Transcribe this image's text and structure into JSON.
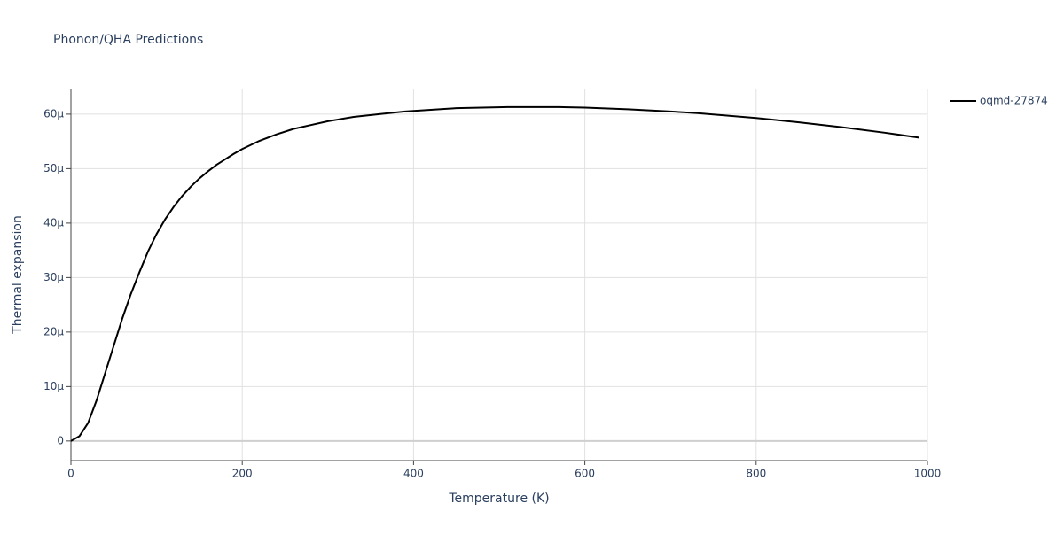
{
  "chart_data": {
    "type": "line",
    "title": "Phonon/QHA Predictions",
    "x_label": "Temperature (K)",
    "y_label": "Thermal expansion",
    "xlim": [
      0,
      1000
    ],
    "xticks": [
      0,
      200,
      400,
      600,
      800,
      1000
    ],
    "ylim": [
      -3.6e-06,
      6.47e-05
    ],
    "yticks": [
      0,
      {
        "value": 1e-05,
        "label": "10µ"
      },
      {
        "value": 2e-05,
        "label": "20µ"
      },
      {
        "value": 3e-05,
        "label": "30µ"
      },
      {
        "value": 4e-05,
        "label": "40µ"
      },
      {
        "value": 5e-05,
        "label": "50µ"
      },
      {
        "value": 6e-05,
        "label": "60µ"
      }
    ],
    "grid": true,
    "legend": "top-right",
    "x": [
      0,
      10,
      20,
      30,
      40,
      50,
      60,
      70,
      80,
      90,
      100,
      110,
      120,
      130,
      140,
      150,
      160,
      170,
      180,
      190,
      200,
      220,
      240,
      260,
      280,
      300,
      330,
      360,
      390,
      420,
      450,
      510,
      570,
      600,
      650,
      700,
      730,
      800,
      850,
      900,
      950,
      990
    ],
    "series": [
      {
        "name": "oqmd-27874",
        "color": "#000000",
        "values": [
          0,
          9e-07,
          3.3e-06,
          7.5e-06,
          1.25e-05,
          1.75e-05,
          2.25e-05,
          2.7e-05,
          3.1e-05,
          3.48e-05,
          3.8e-05,
          4.07e-05,
          4.3e-05,
          4.5e-05,
          4.67e-05,
          4.82e-05,
          4.95e-05,
          5.07e-05,
          5.17e-05,
          5.27e-05,
          5.36e-05,
          5.51e-05,
          5.63e-05,
          5.73e-05,
          5.8e-05,
          5.87e-05,
          5.95e-05,
          6e-05,
          6.05e-05,
          6.08e-05,
          6.11e-05,
          6.13e-05,
          6.13e-05,
          6.12e-05,
          6.09e-05,
          6.05e-05,
          6.02e-05,
          5.93e-05,
          5.85e-05,
          5.76e-05,
          5.66e-05,
          5.57e-05
        ]
      }
    ]
  }
}
